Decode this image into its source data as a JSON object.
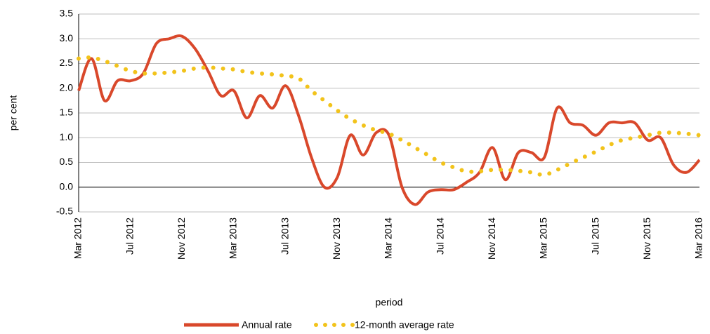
{
  "chart_data": {
    "type": "line",
    "y_label": "per cent",
    "x_label": "period",
    "categories": [
      "Mar 2012",
      null,
      null,
      null,
      "Jul 2012",
      null,
      null,
      null,
      "Nov 2012",
      null,
      null,
      null,
      "Mar 2013",
      null,
      null,
      null,
      "Jul 2013",
      null,
      null,
      null,
      "Nov 2013",
      null,
      null,
      null,
      "Mar 2014",
      null,
      null,
      null,
      "Jul 2014",
      null,
      null,
      null,
      "Nov 2014",
      null,
      null,
      null,
      "Mar 2015",
      null,
      null,
      null,
      "Jul 2015",
      null,
      null,
      null,
      "Nov 2015",
      null,
      null,
      null,
      "Mar 2016"
    ],
    "series": [
      {
        "name": "Annual rate",
        "color": "#d9482b",
        "style": "solid",
        "values": [
          1.95,
          2.6,
          1.75,
          2.15,
          2.15,
          2.3,
          2.9,
          3.0,
          3.05,
          2.8,
          2.35,
          1.85,
          1.95,
          1.4,
          1.85,
          1.6,
          2.05,
          1.45,
          0.6,
          0.0,
          0.2,
          1.05,
          0.65,
          1.1,
          1.05,
          0.0,
          -0.35,
          -0.1,
          -0.05,
          -0.05,
          0.1,
          0.3,
          0.8,
          0.15,
          0.7,
          0.7,
          0.6,
          1.6,
          1.3,
          1.25,
          1.05,
          1.3,
          1.3,
          1.3,
          0.95,
          1.0,
          0.45,
          0.3,
          0.55
        ]
      },
      {
        "name": "12-month average rate",
        "color": "#f2c31b",
        "style": "dotted",
        "values": [
          2.6,
          2.62,
          2.55,
          2.45,
          2.35,
          2.3,
          2.3,
          2.32,
          2.35,
          2.4,
          2.42,
          2.4,
          2.38,
          2.33,
          2.3,
          2.28,
          2.25,
          2.2,
          1.95,
          1.75,
          1.55,
          1.38,
          1.25,
          1.15,
          1.08,
          0.95,
          0.8,
          0.65,
          0.5,
          0.4,
          0.32,
          0.32,
          0.35,
          0.35,
          0.33,
          0.3,
          0.25,
          0.35,
          0.48,
          0.6,
          0.72,
          0.85,
          0.95,
          1.0,
          1.05,
          1.1,
          1.1,
          1.08,
          1.05
        ]
      }
    ],
    "ylim": [
      -0.5,
      3.5
    ],
    "yticks": [
      -0.5,
      {
        "value": 0,
        "label": "0.0"
      },
      0.5,
      {
        "value": 1,
        "label": "1.0"
      },
      1.5,
      {
        "value": 2,
        "label": "2.0"
      },
      2.5,
      {
        "value": 3,
        "label": "3.0"
      },
      3.5
    ],
    "grid": true,
    "legend": "bottom"
  }
}
